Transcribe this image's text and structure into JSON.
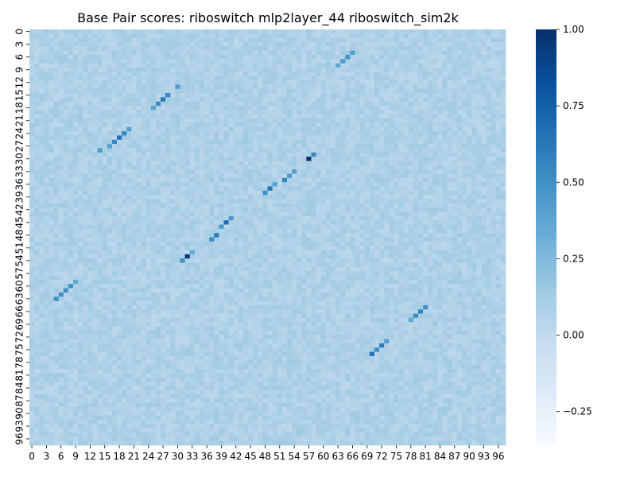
{
  "chart_data": {
    "type": "heatmap",
    "title": "Base Pair scores: riboswitch mlp2layer_44 riboswitch_sim2k",
    "xlabel": "",
    "ylabel": "",
    "n": 98,
    "x_tick_labels": [
      "0",
      "3",
      "6",
      "9",
      "12",
      "15",
      "18",
      "21",
      "24",
      "27",
      "30",
      "33",
      "36",
      "39",
      "42",
      "45",
      "48",
      "51",
      "54",
      "57",
      "60",
      "63",
      "66",
      "69",
      "72",
      "75",
      "78",
      "81",
      "84",
      "87",
      "90",
      "93",
      "96"
    ],
    "y_tick_labels": [
      "0",
      "3",
      "6",
      "9",
      "12",
      "15",
      "18",
      "21",
      "24",
      "27",
      "30",
      "33",
      "36",
      "39",
      "42",
      "45",
      "48",
      "51",
      "54",
      "57",
      "60",
      "63",
      "66",
      "69",
      "72",
      "75",
      "78",
      "81",
      "84",
      "87",
      "90",
      "93",
      "96"
    ],
    "colorbar": {
      "min": -0.36,
      "max": 1.0,
      "ticks": [
        {
          "value": 1.0,
          "label": "1.00"
        },
        {
          "value": 0.75,
          "label": "0.75"
        },
        {
          "value": 0.5,
          "label": "0.50"
        },
        {
          "value": 0.25,
          "label": "0.25"
        },
        {
          "value": 0.0,
          "label": "0.00"
        },
        {
          "value": -0.25,
          "label": "−0.25"
        }
      ]
    },
    "background_value": 0.08,
    "colormap": [
      "#f7fbff",
      "#deebf7",
      "#c6dbef",
      "#9ecae1",
      "#6baed6",
      "#4292c6",
      "#2171b5",
      "#08519c",
      "#08306b"
    ],
    "high_cells": [
      {
        "row": 5,
        "col": 66,
        "value": 0.42
      },
      {
        "row": 6,
        "col": 65,
        "value": 0.48
      },
      {
        "row": 7,
        "col": 64,
        "value": 0.45
      },
      {
        "row": 8,
        "col": 63,
        "value": 0.38
      },
      {
        "row": 13,
        "col": 30,
        "value": 0.42
      },
      {
        "row": 15,
        "col": 28,
        "value": 0.55
      },
      {
        "row": 16,
        "col": 27,
        "value": 0.62
      },
      {
        "row": 17,
        "col": 26,
        "value": 0.52
      },
      {
        "row": 18,
        "col": 25,
        "value": 0.4
      },
      {
        "row": 23,
        "col": 20,
        "value": 0.42
      },
      {
        "row": 24,
        "col": 19,
        "value": 0.55
      },
      {
        "row": 25,
        "col": 18,
        "value": 0.65
      },
      {
        "row": 26,
        "col": 17,
        "value": 0.55
      },
      {
        "row": 27,
        "col": 16,
        "value": 0.4
      },
      {
        "row": 28,
        "col": 14,
        "value": 0.45
      },
      {
        "row": 29,
        "col": 58,
        "value": 0.55
      },
      {
        "row": 30,
        "col": 57,
        "value": 1.0
      },
      {
        "row": 33,
        "col": 54,
        "value": 0.42
      },
      {
        "row": 34,
        "col": 53,
        "value": 0.45
      },
      {
        "row": 35,
        "col": 52,
        "value": 0.55
      },
      {
        "row": 36,
        "col": 50,
        "value": 0.4
      },
      {
        "row": 37,
        "col": 49,
        "value": 0.65
      },
      {
        "row": 38,
        "col": 48,
        "value": 0.5
      },
      {
        "row": 44,
        "col": 41,
        "value": 0.45
      },
      {
        "row": 45,
        "col": 40,
        "value": 0.68
      },
      {
        "row": 46,
        "col": 39,
        "value": 0.45
      },
      {
        "row": 48,
        "col": 38,
        "value": 0.6
      },
      {
        "row": 49,
        "col": 37,
        "value": 0.5
      },
      {
        "row": 52,
        "col": 33,
        "value": 0.35
      },
      {
        "row": 53,
        "col": 32,
        "value": 0.98
      },
      {
        "row": 54,
        "col": 31,
        "value": 0.5
      },
      {
        "row": 59,
        "col": 9,
        "value": 0.35
      },
      {
        "row": 60,
        "col": 8,
        "value": 0.5
      },
      {
        "row": 61,
        "col": 7,
        "value": 0.5
      },
      {
        "row": 62,
        "col": 6,
        "value": 0.5
      },
      {
        "row": 63,
        "col": 5,
        "value": 0.5
      },
      {
        "row": 65,
        "col": 81,
        "value": 0.5
      },
      {
        "row": 66,
        "col": 80,
        "value": 0.55
      },
      {
        "row": 67,
        "col": 79,
        "value": 0.5
      },
      {
        "row": 68,
        "col": 78,
        "value": 0.35
      },
      {
        "row": 73,
        "col": 73,
        "value": 0.42
      },
      {
        "row": 74,
        "col": 72,
        "value": 0.6
      },
      {
        "row": 75,
        "col": 71,
        "value": 0.5
      },
      {
        "row": 76,
        "col": 70,
        "value": 0.65
      }
    ]
  }
}
